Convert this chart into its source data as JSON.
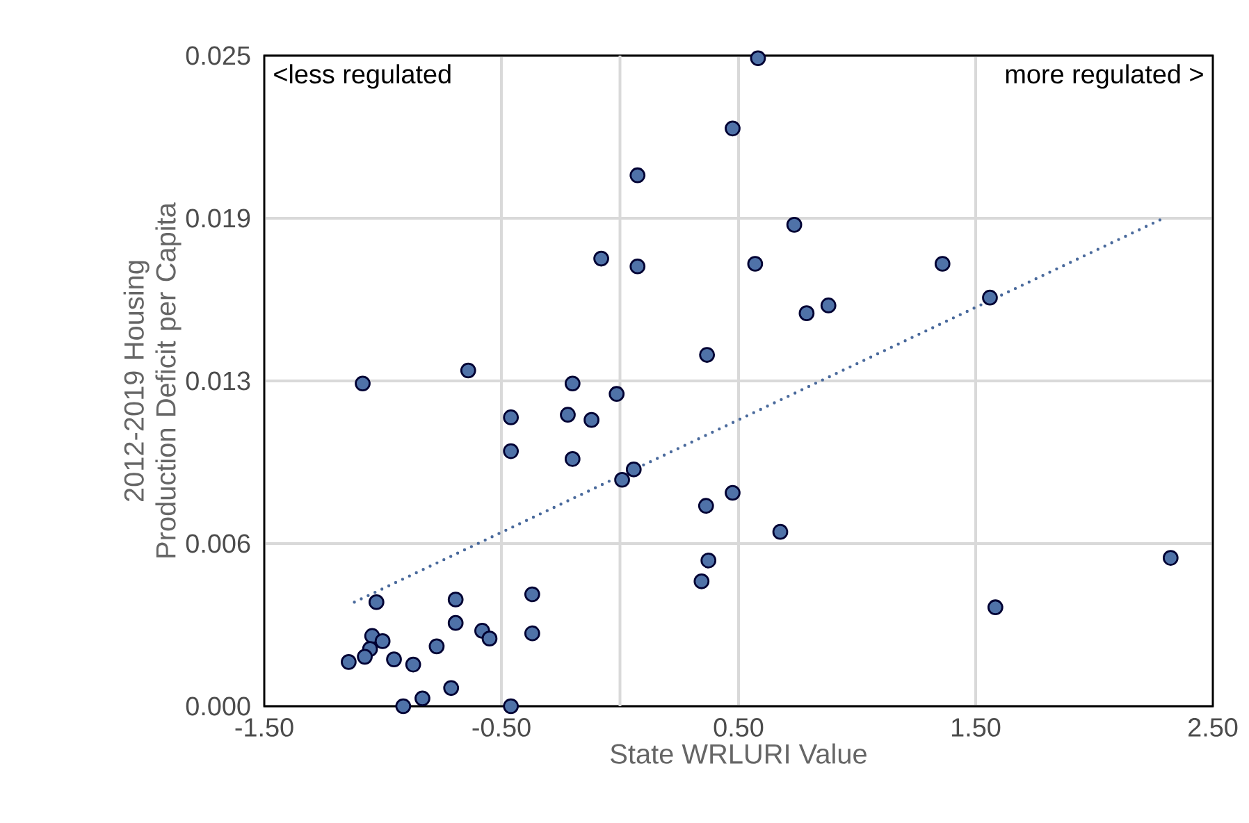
{
  "chart_data": {
    "type": "scatter",
    "xlabel": "State WRLURI Value",
    "ylabel": "2012-2019 Housing Production Deficit per Capita",
    "annotations": [
      "<less regulated",
      "more regulated >"
    ],
    "xlim": [
      -1.5,
      2.5
    ],
    "xticks": [
      {
        "value": -1.5,
        "label": "-1.50"
      },
      {
        "value": -0.5,
        "label": "-0.50"
      },
      {
        "value": 0.5,
        "label": "0.50"
      },
      {
        "value": 1.5,
        "label": "1.50"
      },
      {
        "value": 2.5,
        "label": "2.50"
      }
    ],
    "ylim": [
      0,
      0.025
    ],
    "yticks": [
      {
        "value": 0,
        "label": "0.000"
      },
      {
        "value": 0.00625,
        "label": "0.006"
      },
      {
        "value": 0.0125,
        "label": "0.013"
      },
      {
        "value": 0.01875,
        "label": "0.019"
      },
      {
        "value": 0.025,
        "label": "0.025"
      }
    ],
    "grid": true,
    "ref_lines": [
      {
        "axis": "x",
        "value": 0,
        "color": "#d9d9d9"
      }
    ],
    "series": [
      {
        "type": "scatter",
        "marker": "circle",
        "color": "#4f72a8",
        "x": [
          0.475,
          0.074,
          -0.079,
          0.074,
          0.57,
          0.367,
          -0.64,
          -1.085,
          -0.2,
          -0.014,
          0.582,
          0.735,
          1.36,
          0.787,
          0.879,
          1.56,
          -0.46,
          -0.22,
          -0.12,
          -0.46,
          -0.2,
          0.058,
          0.009,
          0.475,
          0.363,
          0.373,
          0.344,
          -1.027,
          -0.693,
          -0.37,
          -0.693,
          -0.581,
          -0.55,
          -0.37,
          -1.045,
          -1.001,
          -1.054,
          -1.076,
          -1.144,
          -0.953,
          -0.773,
          -0.872,
          -0.712,
          -0.833,
          -0.914,
          -0.46,
          0.676,
          1.583,
          2.322
        ],
        "values": [
          0.0222,
          0.0204,
          0.0172,
          0.0169,
          0.017,
          0.0135,
          0.0129,
          0.0124,
          0.0124,
          0.012,
          0.0249,
          0.0185,
          0.017,
          0.0151,
          0.0154,
          0.0157,
          0.0111,
          0.0112,
          0.011,
          0.0098,
          0.0095,
          0.0091,
          0.0087,
          0.0082,
          0.0077,
          0.0056,
          0.0048,
          0.004,
          0.0041,
          0.0043,
          0.0032,
          0.0029,
          0.0026,
          0.0028,
          0.0027,
          0.0025,
          0.0022,
          0.0019,
          0.0017,
          0.0018,
          0.0023,
          0.0016,
          0.0007,
          0.0003,
          0.0,
          0.0,
          0.0067,
          0.0038,
          0.0057
        ]
      },
      {
        "type": "line",
        "line_style": "dotted",
        "color": "#4a6a9c",
        "x": [
          -1.12,
          2.28
        ],
        "values": [
          0.004,
          0.0187
        ]
      }
    ]
  }
}
